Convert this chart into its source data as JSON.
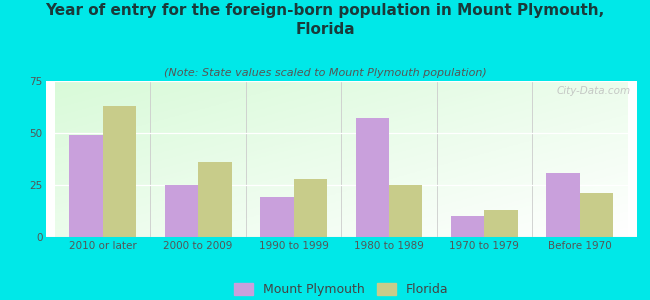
{
  "title": "Year of entry for the foreign-born population in Mount Plymouth,\nFlorida",
  "subtitle": "(Note: State values scaled to Mount Plymouth population)",
  "categories": [
    "2010 or later",
    "2000 to 2009",
    "1990 to 1999",
    "1980 to 1989",
    "1970 to 1979",
    "Before 1970"
  ],
  "mount_plymouth": [
    49,
    25,
    19,
    57,
    10,
    31
  ],
  "florida": [
    63,
    36,
    28,
    25,
    13,
    21
  ],
  "mount_plymouth_color": "#c9a0dc",
  "florida_color": "#c8cc8a",
  "background_color": "#00e8e8",
  "ylim": [
    0,
    75
  ],
  "yticks": [
    0,
    25,
    50,
    75
  ],
  "bar_width": 0.35,
  "legend_labels": [
    "Mount Plymouth",
    "Florida"
  ],
  "watermark": "City-Data.com",
  "title_fontsize": 11,
  "subtitle_fontsize": 8,
  "tick_fontsize": 7.5,
  "legend_fontsize": 9
}
